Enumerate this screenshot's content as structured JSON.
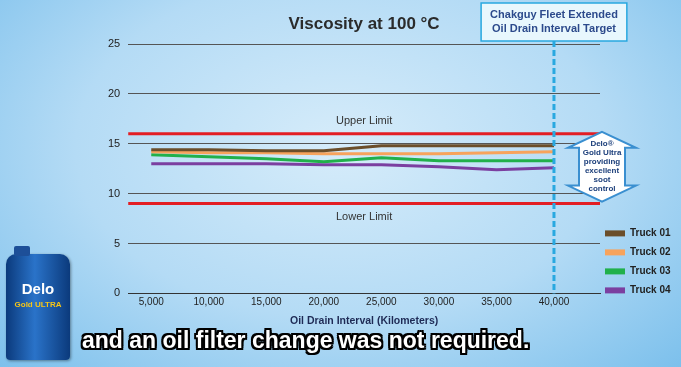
{
  "chart_data": {
    "type": "line",
    "title": "Viscosity at 100 °C",
    "x_label": "Oil Drain Interval (Kilometers)",
    "x": [
      5000,
      10000,
      15000,
      20000,
      25000,
      30000,
      35000,
      40000
    ],
    "series": [
      {
        "name": "Truck 01",
        "color": "#6b4e2a",
        "values": [
          14.4,
          14.4,
          14.3,
          14.3,
          14.8,
          14.8,
          14.8,
          14.8
        ]
      },
      {
        "name": "Truck 02",
        "color": "#f7a35c",
        "values": [
          14.2,
          14.1,
          14.1,
          14.0,
          14.0,
          14.0,
          14.1,
          14.2
        ]
      },
      {
        "name": "Truck 03",
        "color": "#21b04b",
        "values": [
          13.9,
          13.7,
          13.5,
          13.2,
          13.6,
          13.3,
          13.3,
          13.3
        ]
      },
      {
        "name": "Truck 04",
        "color": "#7b3fa0",
        "values": [
          13.0,
          13.0,
          13.0,
          12.9,
          12.9,
          12.7,
          12.4,
          12.6
        ]
      }
    ],
    "xlim": [
      3000,
      44000
    ],
    "xticks": [
      {
        "value": 5000,
        "label": "5,000"
      },
      {
        "value": 10000,
        "label": "10,000"
      },
      {
        "value": 15000,
        "label": "15,000"
      },
      {
        "value": 20000,
        "label": "20,000"
      },
      {
        "value": 25000,
        "label": "25,000"
      },
      {
        "value": 30000,
        "label": "30,000"
      },
      {
        "value": 35000,
        "label": "35,000"
      },
      {
        "value": 40000,
        "label": "40,000"
      }
    ],
    "ylim": [
      0,
      25
    ],
    "yticks": [
      0,
      5,
      10,
      15,
      20,
      25
    ],
    "grid": "y",
    "legend": "lower right",
    "reference_lines": [
      {
        "value": 16,
        "label": "Upper Limit",
        "color": "#e31e24"
      },
      {
        "value": 9,
        "label": "Lower Limit",
        "color": "#e31e24"
      }
    ],
    "vertical_line": {
      "x": 40000,
      "label": [
        "Chakguy Fleet Extended",
        "Oil Drain Interval Target"
      ],
      "color": "#29a8e0",
      "line_style": "dashed"
    },
    "annotation": [
      "Delo®",
      "Gold Ultra",
      "providing",
      "excellent",
      "soot",
      "control"
    ],
    "caption": "and an oil filter change was not required.",
    "product_label": [
      "Delo",
      "Gold ULTRA"
    ]
  }
}
